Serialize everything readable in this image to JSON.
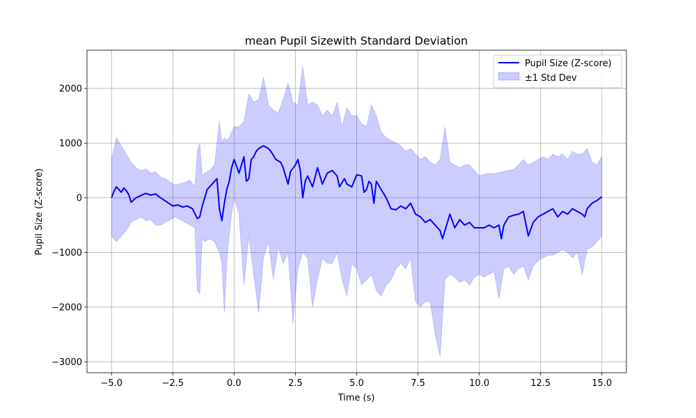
{
  "chart_data": {
    "type": "line",
    "title": "mean Pupil Sizewith Standard Deviation",
    "xlabel": "Time (s)",
    "ylabel": "Pupil Size (Z-score)",
    "xlim": [
      -6.0,
      16.0
    ],
    "ylim": [
      -3200,
      2700
    ],
    "xticks": [
      -5.0,
      -2.5,
      0.0,
      2.5,
      5.0,
      7.5,
      10.0,
      12.5,
      15.0
    ],
    "xtick_labels": [
      "−5.0",
      "−2.5",
      "0.0",
      "2.5",
      "5.0",
      "7.5",
      "10.0",
      "12.5",
      "15.0"
    ],
    "yticks": [
      -3000,
      -2000,
      -1000,
      0,
      1000,
      2000
    ],
    "ytick_labels": [
      "−3000",
      "−2000",
      "−1000",
      "0",
      "1000",
      "2000"
    ],
    "grid": true,
    "legend_position": "top-right",
    "colors": {
      "line": "#0000ff",
      "band_fill": "#0000ff",
      "band_opacity": 0.2,
      "grid": "#b0b0b0"
    },
    "series": [
      {
        "name": "Pupil Size (Z-score)",
        "kind": "line",
        "x": [
          -5.0,
          -4.9,
          -4.8,
          -4.7,
          -4.6,
          -4.5,
          -4.4,
          -4.3,
          -4.2,
          -4.0,
          -3.8,
          -3.6,
          -3.4,
          -3.2,
          -3.0,
          -2.8,
          -2.6,
          -2.5,
          -2.3,
          -2.1,
          -1.9,
          -1.7,
          -1.5,
          -1.4,
          -1.3,
          -1.1,
          -0.9,
          -0.7,
          -0.6,
          -0.5,
          -0.4,
          -0.3,
          -0.2,
          -0.1,
          0.0,
          0.2,
          0.4,
          0.5,
          0.6,
          0.7,
          0.8,
          0.9,
          1.0,
          1.2,
          1.4,
          1.5,
          1.7,
          1.9,
          2.0,
          2.2,
          2.3,
          2.5,
          2.6,
          2.7,
          2.8,
          2.9,
          3.0,
          3.2,
          3.4,
          3.5,
          3.6,
          3.8,
          4.0,
          4.2,
          4.3,
          4.5,
          4.6,
          4.8,
          5.0,
          5.2,
          5.3,
          5.4,
          5.5,
          5.6,
          5.7,
          5.8,
          6.0,
          6.2,
          6.4,
          6.6,
          6.8,
          7.0,
          7.2,
          7.4,
          7.6,
          7.8,
          8.0,
          8.2,
          8.4,
          8.5,
          8.6,
          8.8,
          9.0,
          9.2,
          9.4,
          9.6,
          9.8,
          10.0,
          10.2,
          10.4,
          10.6,
          10.8,
          10.9,
          11.0,
          11.2,
          11.4,
          11.6,
          11.8,
          12.0,
          12.2,
          12.4,
          12.6,
          12.8,
          13.0,
          13.2,
          13.4,
          13.6,
          13.8,
          14.0,
          14.2,
          14.3,
          14.4,
          14.6,
          14.8,
          15.0
        ],
        "y": [
          0,
          120,
          200,
          150,
          100,
          180,
          130,
          60,
          -80,
          0,
          40,
          80,
          50,
          70,
          0,
          -60,
          -120,
          -150,
          -130,
          -170,
          -150,
          -200,
          -380,
          -350,
          -150,
          150,
          250,
          350,
          -200,
          -420,
          -100,
          150,
          300,
          550,
          700,
          450,
          750,
          300,
          350,
          700,
          750,
          850,
          900,
          950,
          900,
          850,
          700,
          650,
          550,
          250,
          480,
          600,
          700,
          500,
          0,
          300,
          400,
          200,
          550,
          400,
          250,
          450,
          500,
          400,
          200,
          350,
          250,
          200,
          420,
          400,
          100,
          150,
          300,
          250,
          -100,
          300,
          150,
          0,
          -200,
          -220,
          -150,
          -200,
          -100,
          -300,
          -350,
          -450,
          -400,
          -500,
          -600,
          -750,
          -600,
          -300,
          -550,
          -400,
          -500,
          -450,
          -550,
          -550,
          -550,
          -500,
          -550,
          -500,
          -750,
          -500,
          -350,
          -320,
          -300,
          -250,
          -700,
          -450,
          -350,
          -300,
          -250,
          -200,
          -350,
          -250,
          -300,
          -200,
          -250,
          -300,
          -350,
          -200,
          -100,
          -50,
          20
        ]
      },
      {
        "name": "±1 Std Dev",
        "kind": "band",
        "x": [
          -5.0,
          -4.8,
          -4.6,
          -4.4,
          -4.2,
          -4.0,
          -3.8,
          -3.6,
          -3.4,
          -3.2,
          -3.0,
          -2.8,
          -2.6,
          -2.4,
          -2.2,
          -2.0,
          -1.8,
          -1.6,
          -1.5,
          -1.4,
          -1.3,
          -1.2,
          -1.0,
          -0.8,
          -0.6,
          -0.5,
          -0.4,
          -0.3,
          -0.2,
          -0.1,
          0.0,
          0.2,
          0.4,
          0.6,
          0.8,
          1.0,
          1.2,
          1.4,
          1.6,
          1.8,
          2.0,
          2.2,
          2.4,
          2.6,
          2.8,
          3.0,
          3.2,
          3.4,
          3.6,
          3.8,
          4.0,
          4.2,
          4.4,
          4.6,
          4.8,
          5.0,
          5.2,
          5.4,
          5.6,
          5.8,
          6.0,
          6.2,
          6.4,
          6.6,
          6.8,
          7.0,
          7.2,
          7.4,
          7.6,
          7.8,
          8.0,
          8.2,
          8.4,
          8.6,
          8.8,
          9.0,
          9.2,
          9.4,
          9.6,
          9.8,
          10.0,
          10.2,
          10.4,
          10.6,
          10.8,
          11.0,
          11.2,
          11.4,
          11.6,
          11.8,
          12.0,
          12.2,
          12.4,
          12.6,
          12.8,
          13.0,
          13.2,
          13.4,
          13.6,
          13.8,
          14.0,
          14.2,
          14.4,
          14.6,
          14.8,
          15.0
        ],
        "upper": [
          700,
          1100,
          950,
          800,
          650,
          550,
          500,
          530,
          450,
          480,
          380,
          350,
          280,
          230,
          260,
          280,
          320,
          200,
          850,
          1000,
          400,
          450,
          500,
          600,
          1400,
          1000,
          1100,
          1050,
          1100,
          1200,
          1300,
          1300,
          1400,
          1900,
          1750,
          1800,
          2200,
          1700,
          1600,
          1550,
          1800,
          2100,
          1750,
          1700,
          2400,
          1700,
          1750,
          1700,
          1500,
          1600,
          1500,
          1750,
          1300,
          1650,
          1500,
          1500,
          1350,
          1300,
          1700,
          1500,
          1200,
          1100,
          1050,
          1000,
          950,
          850,
          900,
          800,
          700,
          750,
          650,
          600,
          700,
          1300,
          650,
          600,
          550,
          600,
          600,
          500,
          400,
          430,
          450,
          440,
          460,
          480,
          500,
          520,
          600,
          700,
          600,
          650,
          700,
          750,
          700,
          800,
          750,
          800,
          700,
          850,
          800,
          800,
          900,
          650,
          600,
          750
        ],
        "lower": [
          -700,
          -800,
          -700,
          -600,
          -450,
          -400,
          -350,
          -420,
          -400,
          -500,
          -500,
          -450,
          -400,
          -350,
          -400,
          -450,
          -500,
          -550,
          -1700,
          -1750,
          -750,
          -800,
          -750,
          -800,
          -1000,
          -1200,
          -2100,
          -1200,
          -700,
          -300,
          0,
          -300,
          -1600,
          -700,
          -1400,
          -2100,
          -1100,
          -800,
          -1500,
          -900,
          -1200,
          -1000,
          -2300,
          -1300,
          -1000,
          -1100,
          -2000,
          -1500,
          -1100,
          -1200,
          -1200,
          -1000,
          -1500,
          -1800,
          -1200,
          -1300,
          -1600,
          -1500,
          -1400,
          -1700,
          -1800,
          -1600,
          -1500,
          -1300,
          -1200,
          -1300,
          -1100,
          -1900,
          -2000,
          -1900,
          -1900,
          -2500,
          -2900,
          -1500,
          -1400,
          -1450,
          -1550,
          -1500,
          -1600,
          -1450,
          -1400,
          -1450,
          -1400,
          -1350,
          -1850,
          -1300,
          -1250,
          -1400,
          -1300,
          -1250,
          -1500,
          -1250,
          -1150,
          -1100,
          -1050,
          -1050,
          -1000,
          -950,
          -1000,
          -1100,
          -1000,
          -1400,
          -950,
          -900,
          -800,
          -700
        ]
      }
    ]
  }
}
